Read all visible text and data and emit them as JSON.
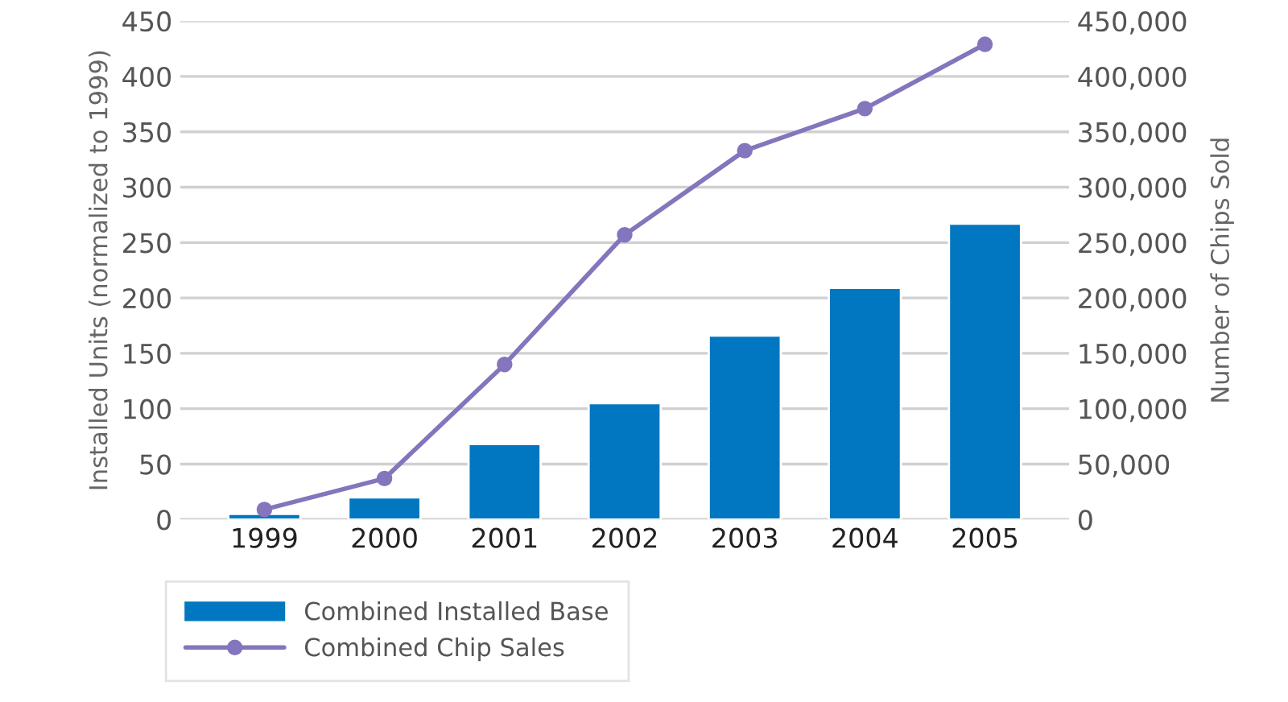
{
  "chart_data": {
    "type": "bar",
    "ylabel": "Installed Units (normalized to 1999)",
    "y2label": "Number of Chips Sold",
    "categories": [
      "1999",
      "2000",
      "2001",
      "2002",
      "2003",
      "2004",
      "2005"
    ],
    "series": [
      {
        "name": "Combined Installed Base",
        "color": "#0077c0",
        "values": [
          5,
          20,
          68,
          105,
          166,
          209,
          267
        ]
      },
      {
        "name": "Combined Chip Sales",
        "color": "#8475bd",
        "type": "line",
        "axis": "y2",
        "marker": "circle",
        "values": [
          9000,
          37000,
          140000,
          257000,
          333000,
          371000,
          429000
        ]
      }
    ],
    "ylim": [
      0,
      450
    ],
    "yticks": [
      0,
      50,
      100,
      150,
      200,
      250,
      300,
      350,
      400,
      450
    ],
    "y2lim": [
      0,
      450000
    ],
    "y2ticks": [
      {
        "value": 0,
        "label": "0"
      },
      {
        "value": 50000,
        "label": "50,000"
      },
      {
        "value": 100000,
        "label": "100,000"
      },
      {
        "value": 150000,
        "label": "150,000"
      },
      {
        "value": 200000,
        "label": "200,000"
      },
      {
        "value": 250000,
        "label": "250,000"
      },
      {
        "value": 300000,
        "label": "300,000"
      },
      {
        "value": 350000,
        "label": "350,000"
      },
      {
        "value": 400000,
        "label": "400,000"
      },
      {
        "value": 450000,
        "label": "450,000"
      }
    ],
    "grid": "y",
    "legend": "bottom"
  }
}
